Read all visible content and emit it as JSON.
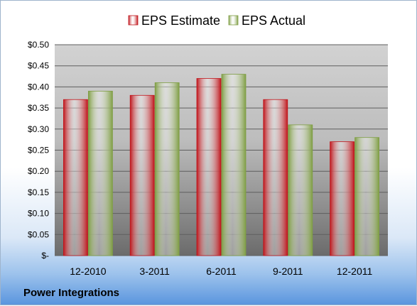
{
  "chart_data": {
    "type": "bar",
    "categories": [
      "12-2010",
      "3-2011",
      "6-2011",
      "9-2011",
      "12-2011"
    ],
    "series": [
      {
        "name": "EPS Estimate",
        "color": "#c0161c",
        "values": [
          0.37,
          0.38,
          0.42,
          0.37,
          0.27
        ]
      },
      {
        "name": "EPS Actual",
        "color": "#7f9e44",
        "values": [
          0.39,
          0.41,
          0.43,
          0.31,
          0.28
        ]
      }
    ],
    "y_ticks": [
      {
        "value": 0.0,
        "label": "$-"
      },
      {
        "value": 0.05,
        "label": "$0.05"
      },
      {
        "value": 0.1,
        "label": "$0.10"
      },
      {
        "value": 0.15,
        "label": "$0.15"
      },
      {
        "value": 0.2,
        "label": "$0.20"
      },
      {
        "value": 0.25,
        "label": "$0.25"
      },
      {
        "value": 0.3,
        "label": "$0.30"
      },
      {
        "value": 0.35,
        "label": "$0.35"
      },
      {
        "value": 0.4,
        "label": "$0.40"
      },
      {
        "value": 0.45,
        "label": "$0.45"
      },
      {
        "value": 0.5,
        "label": "$0.50"
      }
    ],
    "ylim": [
      0,
      0.5
    ],
    "grid": true,
    "legend_position": "top",
    "caption": "Power Integrations",
    "title": "",
    "xlabel": "",
    "ylabel": ""
  }
}
